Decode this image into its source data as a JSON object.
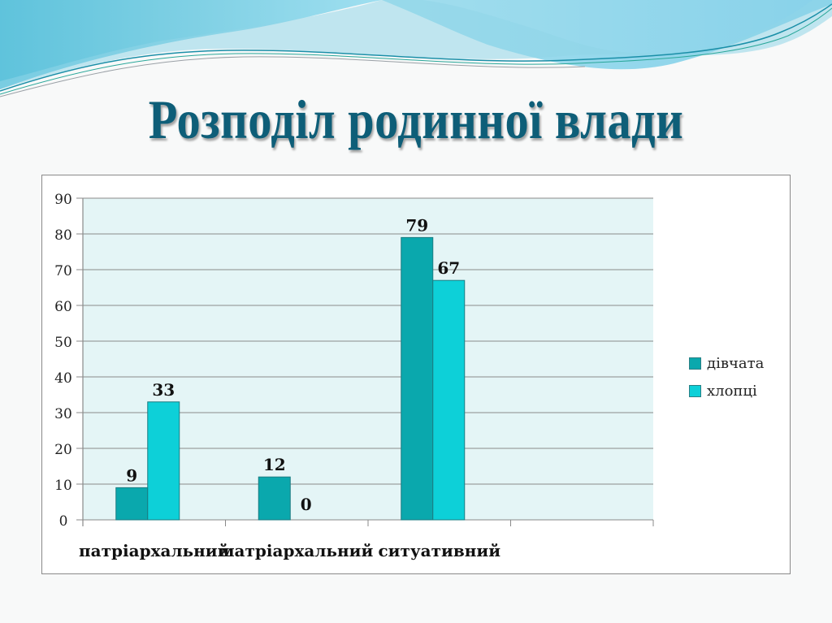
{
  "slide": {
    "title": "Розподіл родинної влади"
  },
  "colors": {
    "title": "#0e5e78",
    "series_girls": "#0aa8ad",
    "series_boys": "#0dd0d8",
    "plot_background": "#e4f5f6",
    "gridline": "#8a8a8a"
  },
  "legend": {
    "items": [
      {
        "label": "дівчата",
        "color": "#0aa8ad"
      },
      {
        "label": "хлопці",
        "color": "#0dd0d8"
      }
    ]
  },
  "chart_data": {
    "type": "bar",
    "title": "Розподіл родинної влади",
    "categories": [
      "патріархальний",
      "матріархальний",
      "ситуативний",
      ""
    ],
    "series": [
      {
        "name": "дівчата",
        "values": [
          9,
          12,
          79,
          null
        ],
        "color": "#0aa8ad"
      },
      {
        "name": "хлопці",
        "values": [
          33,
          0,
          67,
          null
        ],
        "color": "#0dd0d8"
      }
    ],
    "data_labels": true,
    "xlabel": "",
    "ylabel": "",
    "ylim": [
      0,
      90
    ],
    "yticks": [
      0,
      10,
      20,
      30,
      40,
      50,
      60,
      70,
      80,
      90
    ],
    "grid": true,
    "legend_position": "right"
  }
}
